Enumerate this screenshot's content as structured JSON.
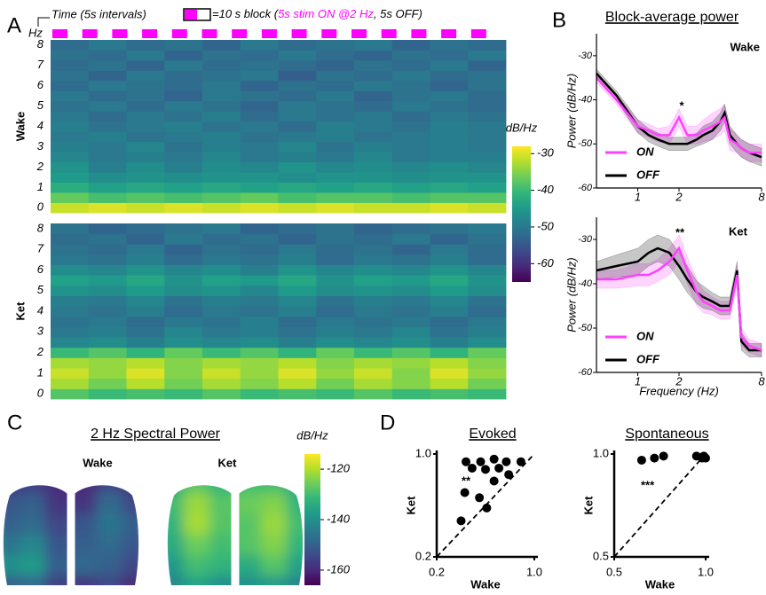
{
  "panel_labels": [
    "A",
    "B",
    "C",
    "D"
  ],
  "chart_data": [
    {
      "type": "heatmap",
      "y_unit": "Hz",
      "x_label": "Time (5s intervals)",
      "legend": {
        "prefix": "=10 s block (",
        "on": "5s stim ON @2 Hz",
        "suffix": ", 5s OFF)",
        "on_color": "#ff00ff"
      },
      "colormap": "viridis",
      "freqs": [
        0,
        0.5,
        1,
        1.5,
        2,
        2.5,
        3,
        3.5,
        4,
        4.5,
        5,
        5.5,
        6,
        6.5,
        7,
        7.5,
        8
      ],
      "ylim": [
        -0.25,
        8.25
      ],
      "yticks": [
        0,
        1,
        2,
        3,
        4,
        5,
        6,
        7,
        8
      ],
      "colorbar": {
        "title": "dB/Hz",
        "clim": [
          -65,
          -28
        ],
        "ticks": [
          -30,
          -40,
          -50,
          -60
        ]
      },
      "panels": [
        {
          "label": "Wake",
          "color": "#000000",
          "values": [
            [
              -31,
              -30,
              -31,
              -30,
              -31,
              -30,
              -31,
              -30,
              -31,
              -31,
              -30,
              -31
            ],
            [
              -37,
              -39,
              -38,
              -39,
              -38,
              -37,
              -39,
              -38,
              -38,
              -39,
              -38,
              -38
            ],
            [
              -42,
              -44,
              -43,
              -44,
              -43,
              -44,
              -43,
              -44,
              -43,
              -44,
              -43,
              -44
            ],
            [
              -45,
              -47,
              -46,
              -47,
              -46,
              -46,
              -47,
              -46,
              -46,
              -47,
              -46,
              -46
            ],
            [
              -46,
              -49,
              -47,
              -49,
              -47,
              -48,
              -46,
              -48,
              -47,
              -48,
              -47,
              -48
            ],
            [
              -48,
              -50,
              -49,
              -50,
              -48,
              -50,
              -49,
              -50,
              -48,
              -50,
              -49,
              -49
            ],
            [
              -49,
              -50,
              -48,
              -51,
              -49,
              -50,
              -48,
              -51,
              -49,
              -50,
              -49,
              -50
            ],
            [
              -50,
              -49,
              -51,
              -50,
              -49,
              -51,
              -50,
              -49,
              -51,
              -50,
              -49,
              -50
            ],
            [
              -49,
              -51,
              -50,
              -49,
              -51,
              -50,
              -52,
              -49,
              -50,
              -51,
              -49,
              -50
            ],
            [
              -50,
              -52,
              -50,
              -51,
              -49,
              -52,
              -50,
              -51,
              -50,
              -52,
              -50,
              -51
            ],
            [
              -51,
              -50,
              -52,
              -50,
              -51,
              -53,
              -50,
              -51,
              -52,
              -50,
              -51,
              -52
            ],
            [
              -50,
              -52,
              -51,
              -53,
              -50,
              -51,
              -52,
              -50,
              -53,
              -51,
              -50,
              -52
            ],
            [
              -52,
              -50,
              -51,
              -52,
              -50,
              -53,
              -51,
              -52,
              -50,
              -51,
              -53,
              -51
            ],
            [
              -51,
              -53,
              -50,
              -52,
              -51,
              -50,
              -54,
              -51,
              -52,
              -50,
              -52,
              -51
            ],
            [
              -52,
              -51,
              -53,
              -50,
              -52,
              -51,
              -52,
              -53,
              -51,
              -52,
              -50,
              -53
            ],
            [
              -51,
              -52,
              -50,
              -53,
              -51,
              -52,
              -50,
              -52,
              -53,
              -51,
              -52,
              -50
            ],
            [
              -52,
              -50,
              -52,
              -51,
              -53,
              -50,
              -52,
              -51,
              -50,
              -53,
              -51,
              -52
            ]
          ]
        },
        {
          "label": "Ket",
          "color": "#f5b800",
          "values": [
            [
              -38,
              -40,
              -39,
              -40,
              -38,
              -40,
              -39,
              -40,
              -38,
              -40,
              -39,
              -40
            ],
            [
              -33,
              -36,
              -32,
              -36,
              -33,
              -35,
              -32,
              -36,
              -33,
              -35,
              -32,
              -36
            ],
            [
              -31,
              -34,
              -30,
              -35,
              -31,
              -34,
              -30,
              -34,
              -31,
              -35,
              -30,
              -34
            ],
            [
              -33,
              -34,
              -32,
              -35,
              -33,
              -34,
              -32,
              -35,
              -33,
              -34,
              -32,
              -35
            ],
            [
              -40,
              -38,
              -41,
              -37,
              -40,
              -38,
              -41,
              -37,
              -40,
              -38,
              -41,
              -37
            ],
            [
              -48,
              -47,
              -49,
              -47,
              -48,
              -47,
              -49,
              -47,
              -48,
              -47,
              -49,
              -47
            ],
            [
              -50,
              -49,
              -51,
              -48,
              -50,
              -49,
              -51,
              -49,
              -50,
              -48,
              -51,
              -49
            ],
            [
              -51,
              -50,
              -52,
              -50,
              -51,
              -49,
              -52,
              -50,
              -51,
              -50,
              -52,
              -50
            ],
            [
              -50,
              -51,
              -49,
              -52,
              -50,
              -51,
              -49,
              -52,
              -50,
              -51,
              -49,
              -52
            ],
            [
              -49,
              -50,
              -48,
              -51,
              -49,
              -50,
              -48,
              -51,
              -49,
              -50,
              -48,
              -51
            ],
            [
              -46,
              -47,
              -45,
              -47,
              -46,
              -48,
              -45,
              -47,
              -46,
              -47,
              -45,
              -47
            ],
            [
              -44,
              -45,
              -43,
              -46,
              -44,
              -45,
              -43,
              -46,
              -44,
              -45,
              -43,
              -46
            ],
            [
              -47,
              -48,
              -46,
              -48,
              -47,
              -49,
              -46,
              -48,
              -47,
              -48,
              -46,
              -48
            ],
            [
              -50,
              -51,
              -49,
              -52,
              -50,
              -51,
              -49,
              -52,
              -50,
              -51,
              -49,
              -52
            ],
            [
              -51,
              -52,
              -50,
              -53,
              -51,
              -52,
              -50,
              -52,
              -51,
              -53,
              -50,
              -52
            ],
            [
              -52,
              -51,
              -53,
              -50,
              -52,
              -51,
              -53,
              -51,
              -52,
              -50,
              -53,
              -51
            ],
            [
              -51,
              -53,
              -52,
              -51,
              -50,
              -53,
              -52,
              -51,
              -53,
              -52,
              -51,
              -50
            ]
          ]
        }
      ]
    },
    {
      "type": "line",
      "title": "Block-average power",
      "x_label": "Frequency (Hz)",
      "y_label": "Power (dB/Hz)",
      "x_scale": "log",
      "xlim": [
        0.5,
        8
      ],
      "xticks": [
        1,
        2,
        8
      ],
      "ylim": [
        -60,
        -25
      ],
      "yticks": [
        -30,
        -40,
        -50,
        -60
      ],
      "legend": "lower left",
      "x": [
        0.5,
        0.7,
        1,
        1.2,
        1.4,
        1.7,
        2,
        2.3,
        2.7,
        3,
        3.5,
        4,
        4.3,
        4.7,
        5.3,
        5.7,
        6.5,
        8
      ],
      "panels": [
        {
          "label": "Wake",
          "label_color": "#000000",
          "annotation": "*",
          "series": [
            {
              "name": "ON",
              "color": "#ff40ff",
              "values": [
                -35,
                -40,
                -46,
                -47,
                -48,
                -48,
                -44,
                -48,
                -48,
                -47,
                -46,
                -45,
                -44,
                -49,
                -50,
                -51,
                -52,
                -52
              ],
              "err": [
                1,
                1,
                1.5,
                1.5,
                1.5,
                2,
                2,
                2,
                2,
                2.5,
                3,
                3,
                3,
                2.5,
                2,
                2,
                2,
                2
              ]
            },
            {
              "name": "OFF",
              "color": "#000000",
              "values": [
                -34,
                -39,
                -46,
                -48,
                -49,
                -50,
                -50,
                -50,
                -49,
                -48,
                -47,
                -45,
                -43,
                -48,
                -50,
                -51,
                -52,
                -53
              ],
              "err": [
                1,
                1,
                1.5,
                1.5,
                1.5,
                1.5,
                1.5,
                1.5,
                1.5,
                2,
                2,
                2,
                2,
                2,
                2,
                2,
                2,
                2
              ]
            }
          ]
        },
        {
          "label": "Ket",
          "label_color": "#f5b800",
          "annotation": "**",
          "series": [
            {
              "name": "ON",
              "color": "#ff40ff",
              "values": [
                -39,
                -39,
                -38,
                -38,
                -37,
                -35,
                -32,
                -37,
                -42,
                -44,
                -45,
                -46,
                -46,
                -46,
                -38,
                -52,
                -54,
                -55
              ],
              "err": [
                2,
                2,
                2.5,
                2.5,
                2.5,
                3,
                3,
                3,
                3,
                2.5,
                2,
                2,
                2,
                2,
                2,
                2,
                1.5,
                1.5
              ]
            },
            {
              "name": "OFF",
              "color": "#000000",
              "values": [
                -37,
                -36,
                -35,
                -33,
                -32,
                -33,
                -36,
                -39,
                -42,
                -43,
                -44,
                -45,
                -45,
                -45,
                -37,
                -53,
                -55,
                -55
              ],
              "err": [
                2,
                2.5,
                3,
                3,
                3,
                3,
                3,
                3,
                2.5,
                2.5,
                2,
                2,
                2,
                2,
                2,
                2,
                1.5,
                1.5
              ]
            }
          ]
        }
      ]
    },
    {
      "type": "map",
      "title": "2 Hz Spectral Power",
      "colormap": "viridis",
      "colorbar": {
        "title": "dB/Hz",
        "clim": [
          -166,
          -114
        ],
        "ticks": [
          -120,
          -140,
          -160
        ]
      },
      "maps": [
        {
          "label": "Wake",
          "color": "#000000",
          "values": [
            [
              -158,
              -156,
              -160,
              -160,
              -155,
              -158
            ],
            [
              -152,
              -150,
              -158,
              -158,
              -148,
              -155
            ],
            [
              -150,
              -148,
              -155,
              -152,
              -146,
              -150
            ],
            [
              -146,
              -142,
              -152,
              -150,
              -148,
              -152
            ],
            [
              -140,
              -138,
              -150,
              -148,
              -150,
              -155
            ],
            [
              -150,
              -148,
              -156,
              -158,
              -155,
              -160
            ]
          ]
        },
        {
          "label": "Ket",
          "color": "#f5b800",
          "values": [
            [
              -134,
              -128,
              -132,
              -130,
              -130,
              -136
            ],
            [
              -130,
              -122,
              -128,
              -126,
              -124,
              -132
            ],
            [
              -132,
              -121,
              -128,
              -128,
              -122,
              -130
            ],
            [
              -134,
              -126,
              -130,
              -128,
              -124,
              -132
            ],
            [
              -138,
              -130,
              -132,
              -134,
              -128,
              -136
            ],
            [
              -142,
              -136,
              -140,
              -140,
              -138,
              -142
            ]
          ]
        }
      ]
    },
    {
      "type": "scatter",
      "x_label": "Wake",
      "y_label": "Ket",
      "y_label_color": "#f5b800",
      "color": "#000000",
      "annotation_color": "#f5b800",
      "panels": [
        {
          "title": "Evoked",
          "annotation": "**",
          "xlim": [
            0.2,
            1
          ],
          "ylim": [
            0.2,
            1
          ],
          "xticks": [
            0.2,
            {
              "value": 1,
              "label": "1.0"
            }
          ],
          "yticks": [
            0.2,
            {
              "value": 1,
              "label": "1.0"
            }
          ],
          "x": [
            0.44,
            0.56,
            0.67,
            0.77,
            0.89,
            0.49,
            0.6,
            0.71,
            0.79,
            0.67,
            0.43,
            0.55,
            0.61,
            0.4
          ],
          "y": [
            0.94,
            0.94,
            0.96,
            0.94,
            0.94,
            0.89,
            0.88,
            0.89,
            0.84,
            0.79,
            0.7,
            0.66,
            0.58,
            0.48
          ]
        },
        {
          "title": "Spontaneous",
          "annotation": "***",
          "xlim": [
            0.5,
            1
          ],
          "ylim": [
            0.5,
            1
          ],
          "xticks": [
            0.5,
            {
              "value": 1,
              "label": "1.0"
            }
          ],
          "yticks": [
            0.5,
            {
              "value": 1,
              "label": "1.0"
            }
          ],
          "x": [
            0.65,
            0.72,
            0.77,
            0.95,
            0.99,
            1.0,
            0.98
          ],
          "y": [
            0.97,
            0.98,
            0.99,
            0.99,
            0.99,
            0.98,
            0.98
          ]
        }
      ]
    }
  ]
}
